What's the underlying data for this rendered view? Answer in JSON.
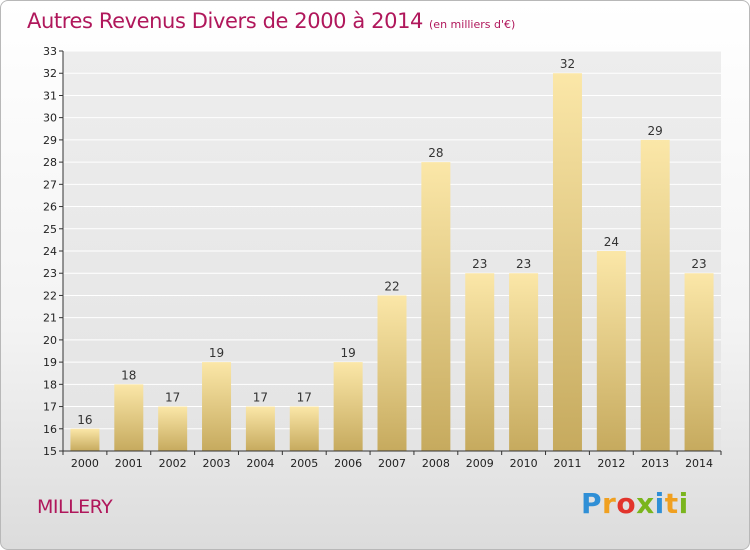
{
  "title": "Autres Revenus Divers de 2000 à 2014",
  "subtitle": "(en milliers d'€)",
  "location": "MILLERY",
  "logo": {
    "letters": [
      {
        "ch": "P",
        "color": "#2f8fd6"
      },
      {
        "ch": "r",
        "color": "#f0a020"
      },
      {
        "ch": "o",
        "color": "#e2342c"
      },
      {
        "ch": "x",
        "color": "#7ab51d"
      },
      {
        "ch": "i",
        "color": "#2f8fd6"
      },
      {
        "ch": "t",
        "color": "#f0a020"
      },
      {
        "ch": "i",
        "color": "#7ab51d"
      }
    ]
  },
  "colors": {
    "accent": "#b0175b",
    "bar_light": "#fbe7a8",
    "bar_dark": "#c6aa5e"
  },
  "chart_data": {
    "type": "bar",
    "title": "Autres Revenus Divers de 2000 à 2014",
    "subtitle": "(en milliers d'€)",
    "categories": [
      "2000",
      "2001",
      "2002",
      "2003",
      "2004",
      "2005",
      "2006",
      "2007",
      "2008",
      "2009",
      "2010",
      "2011",
      "2012",
      "2013",
      "2014"
    ],
    "values": [
      16,
      18,
      17,
      19,
      17,
      17,
      19,
      22,
      28,
      23,
      23,
      32,
      24,
      29,
      23
    ],
    "ylim": [
      15,
      33
    ],
    "yticks": [
      15,
      16,
      17,
      18,
      19,
      20,
      21,
      22,
      23,
      24,
      25,
      26,
      27,
      28,
      29,
      30,
      31,
      32,
      33
    ],
    "grid": true,
    "legend": "none"
  }
}
